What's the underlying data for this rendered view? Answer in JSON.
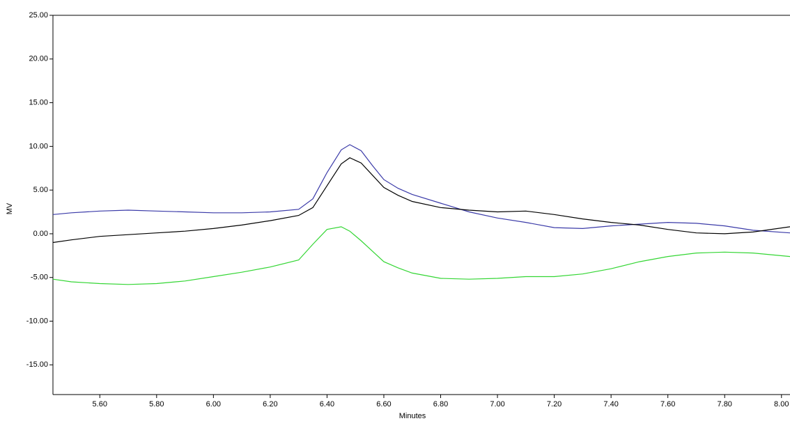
{
  "chart_data": {
    "type": "line",
    "x_label": "Minutes",
    "y_label": "MV",
    "x": [
      5.435,
      5.5,
      5.6,
      5.7,
      5.8,
      5.9,
      6.0,
      6.1,
      6.2,
      6.3,
      6.35,
      6.4,
      6.45,
      6.48,
      6.52,
      6.56,
      6.6,
      6.65,
      6.7,
      6.8,
      6.9,
      7.0,
      7.1,
      7.2,
      7.3,
      7.4,
      7.5,
      7.6,
      7.7,
      7.8,
      7.9,
      8.03
    ],
    "series": [
      {
        "color": "#3a3aa8",
        "values": [
          2.2,
          2.4,
          2.6,
          2.7,
          2.6,
          2.5,
          2.4,
          2.4,
          2.5,
          2.8,
          4.0,
          7.0,
          9.6,
          10.2,
          9.5,
          7.8,
          6.2,
          5.2,
          4.5,
          3.5,
          2.5,
          1.8,
          1.3,
          0.7,
          0.6,
          0.9,
          1.1,
          1.3,
          1.2,
          0.9,
          0.4,
          0.1
        ]
      },
      {
        "color": "#000000",
        "values": [
          -1.0,
          -0.7,
          -0.3,
          -0.1,
          0.1,
          0.3,
          0.6,
          1.0,
          1.5,
          2.1,
          3.0,
          5.5,
          8.0,
          8.7,
          8.1,
          6.7,
          5.3,
          4.4,
          3.7,
          3.0,
          2.7,
          2.5,
          2.6,
          2.2,
          1.7,
          1.3,
          1.0,
          0.5,
          0.1,
          0.0,
          0.2,
          0.8
        ]
      },
      {
        "color": "#33d633",
        "values": [
          -5.2,
          -5.5,
          -5.7,
          -5.8,
          -5.7,
          -5.4,
          -4.9,
          -4.4,
          -3.8,
          -3.0,
          -1.2,
          0.5,
          0.8,
          0.3,
          -0.8,
          -2.0,
          -3.2,
          -3.9,
          -4.5,
          -5.1,
          -5.2,
          -5.1,
          -4.9,
          -4.9,
          -4.6,
          -4.0,
          -3.2,
          -2.6,
          -2.2,
          -2.1,
          -2.2,
          -2.6
        ]
      }
    ],
    "xlim": [
      5.435,
      8.03
    ],
    "ylim": [
      -18.4,
      25
    ],
    "xticks": [
      {
        "value": 5.6,
        "label": "5.60"
      },
      {
        "value": 5.8,
        "label": "5.80"
      },
      {
        "value": 6.0,
        "label": "6.00"
      },
      {
        "value": 6.2,
        "label": "6.20"
      },
      {
        "value": 6.4,
        "label": "6.40"
      },
      {
        "value": 6.6,
        "label": "6.60"
      },
      {
        "value": 6.8,
        "label": "6.80"
      },
      {
        "value": 7.0,
        "label": "7.00"
      },
      {
        "value": 7.2,
        "label": "7.20"
      },
      {
        "value": 7.4,
        "label": "7.40"
      },
      {
        "value": 7.6,
        "label": "7.60"
      },
      {
        "value": 7.8,
        "label": "7.80"
      },
      {
        "value": 8.0,
        "label": "8.00"
      }
    ],
    "yticks": [
      {
        "value": 25,
        "label": "25.00"
      },
      {
        "value": 20,
        "label": "20.00"
      },
      {
        "value": 15,
        "label": "15.00"
      },
      {
        "value": 10,
        "label": "10.00"
      },
      {
        "value": 5,
        "label": "5.00"
      },
      {
        "value": 0,
        "label": "0.00"
      },
      {
        "value": -5,
        "label": "-5.00"
      },
      {
        "value": -10,
        "label": "-10.00"
      },
      {
        "value": -15,
        "label": "-15.00"
      }
    ]
  }
}
